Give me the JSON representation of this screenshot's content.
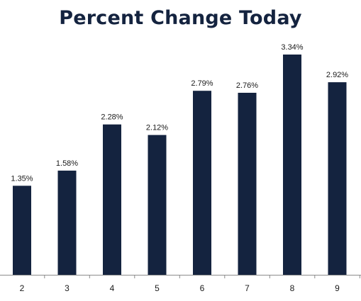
{
  "chart_data": {
    "type": "bar",
    "title": "Percent Change Today",
    "xlabel": "",
    "ylabel": "",
    "categories": [
      "2",
      "3",
      "4",
      "5",
      "6",
      "7",
      "8",
      "9"
    ],
    "values": [
      1.35,
      1.58,
      2.28,
      2.12,
      2.79,
      2.76,
      3.34,
      2.92
    ],
    "data_labels": [
      "1.35%",
      "1.58%",
      "2.28%",
      "2.12%",
      "2.79%",
      "2.76%",
      "3.34%",
      "2.92%"
    ],
    "ylim": [
      0,
      3.34
    ],
    "grid": false,
    "legend": "none",
    "bar_color": "#14233f",
    "title_color": "#14233f"
  }
}
